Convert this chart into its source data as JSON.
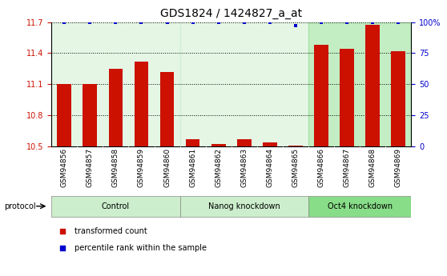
{
  "title": "GDS1824 / 1424827_a_at",
  "samples": [
    "GSM94856",
    "GSM94857",
    "GSM94858",
    "GSM94859",
    "GSM94860",
    "GSM94861",
    "GSM94862",
    "GSM94863",
    "GSM94864",
    "GSM94865",
    "GSM94866",
    "GSM94867",
    "GSM94868",
    "GSM94869"
  ],
  "bar_values": [
    11.1,
    11.1,
    11.25,
    11.32,
    11.22,
    10.565,
    10.52,
    10.565,
    10.54,
    10.51,
    11.48,
    11.44,
    11.67,
    11.42
  ],
  "dot_values": [
    100,
    100,
    100,
    100,
    100,
    100,
    100,
    100,
    100,
    97,
    100,
    100,
    100,
    100
  ],
  "bar_color": "#cc1100",
  "dot_color": "#0000cc",
  "ylim_left": [
    10.5,
    11.7
  ],
  "ylim_right": [
    0,
    100
  ],
  "yticks_left": [
    10.5,
    10.8,
    11.1,
    11.4,
    11.7
  ],
  "yticks_right": [
    0,
    25,
    50,
    75,
    100
  ],
  "groups": [
    {
      "label": "Control",
      "start": 0,
      "end": 4,
      "color": "#cceecc"
    },
    {
      "label": "Nanog knockdown",
      "start": 5,
      "end": 9,
      "color": "#cceecc"
    },
    {
      "label": "Oct4 knockdown",
      "start": 10,
      "end": 13,
      "color": "#88dd88"
    }
  ],
  "protocol_label": "protocol",
  "legend_red": "transformed count",
  "legend_blue": "percentile rank within the sample",
  "title_fontsize": 10,
  "tick_fontsize": 7,
  "label_fontsize": 8,
  "bar_width": 0.55,
  "background_color": "#ffffff",
  "plot_bg_color": "#ffffff",
  "xtick_bg_color": "#cccccc",
  "group_border_color": "#888888"
}
